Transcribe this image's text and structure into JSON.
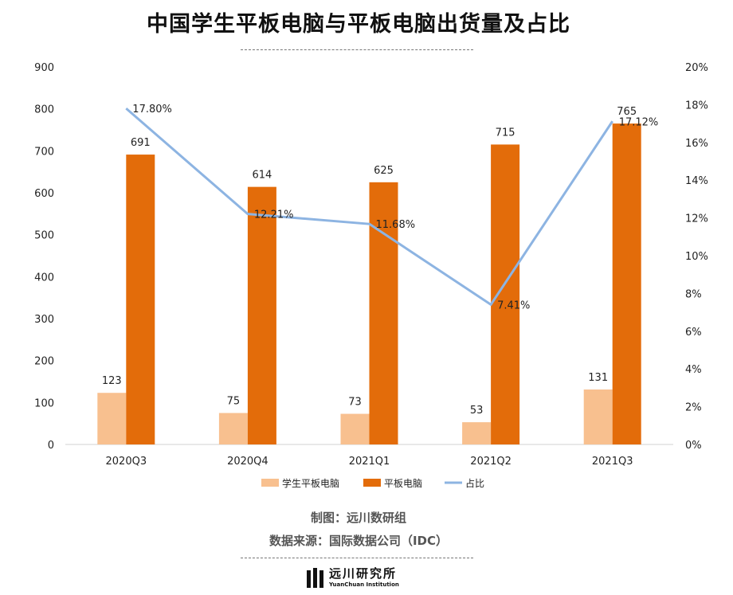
{
  "title": "中国学生平板电脑与平板电脑出货量及占比",
  "chart_data": {
    "type": "bar",
    "categories": [
      "2020Q3",
      "2020Q4",
      "2021Q1",
      "2021Q2",
      "2021Q3"
    ],
    "series": [
      {
        "name": "学生平板电脑",
        "type": "bar",
        "axis": "left",
        "color": "#F8C08F",
        "values": [
          123,
          75,
          73,
          53,
          131
        ],
        "labels": [
          "123",
          "75",
          "73",
          "53",
          "131"
        ]
      },
      {
        "name": "平板电脑",
        "type": "bar",
        "axis": "left",
        "color": "#E36C0A",
        "values": [
          691,
          614,
          625,
          715,
          765
        ],
        "labels": [
          "691",
          "614",
          "625",
          "715",
          "765"
        ]
      },
      {
        "name": "占比",
        "type": "line",
        "axis": "right",
        "color": "#8DB4E2",
        "values": [
          17.8,
          12.21,
          11.68,
          7.41,
          17.12
        ],
        "labels": [
          "17.80%",
          "12.21%",
          "11.68%",
          "7.41%",
          "17.12%"
        ]
      }
    ],
    "left_axis": {
      "min": 0,
      "max": 900,
      "ticks": [
        "0",
        "100",
        "200",
        "300",
        "400",
        "500",
        "600",
        "700",
        "800",
        "900"
      ]
    },
    "right_axis": {
      "min": 0,
      "max": 20,
      "ticks": [
        "0%",
        "2%",
        "4%",
        "6%",
        "8%",
        "10%",
        "12%",
        "14%",
        "16%",
        "18%",
        "20%"
      ]
    },
    "grid": false,
    "legend_position": "bottom"
  },
  "credits": {
    "maker": "制图：远川数研组",
    "source": "数据来源：国际数据公司（IDC）"
  },
  "logo": {
    "name_cn": "远川研究所",
    "name_en": "YuanChuan Institution"
  }
}
